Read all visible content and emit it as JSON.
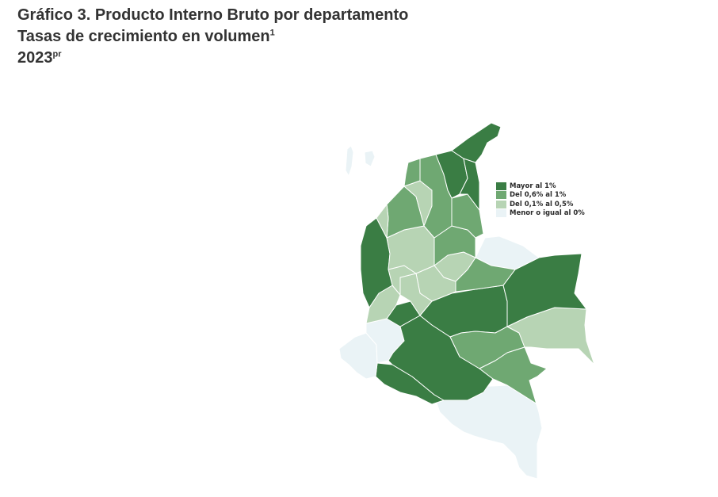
{
  "header": {
    "title": "Gráfico 3. Producto Interno Bruto por departamento",
    "subtitle": "Tasas de crecimiento en volumen",
    "subtitle_sup": "1",
    "year": "2023",
    "year_sup": "pr"
  },
  "legend": {
    "items": [
      {
        "label": "Mayor al 1%",
        "color": "#3a7d44"
      },
      {
        "label": "Del 0,6% al 1%",
        "color": "#6fa872"
      },
      {
        "label": "Del 0,1% al 0,5%",
        "color": "#b7d4b4"
      },
      {
        "label": "Menor o igual al 0%",
        "color": "#eaf3f6"
      }
    ]
  },
  "colors": {
    "class_high": "#3a7d44",
    "class_mid": "#6fa872",
    "class_low": "#b7d4b4",
    "class_none": "#eaf3f6",
    "border": "#ffffff"
  }
}
